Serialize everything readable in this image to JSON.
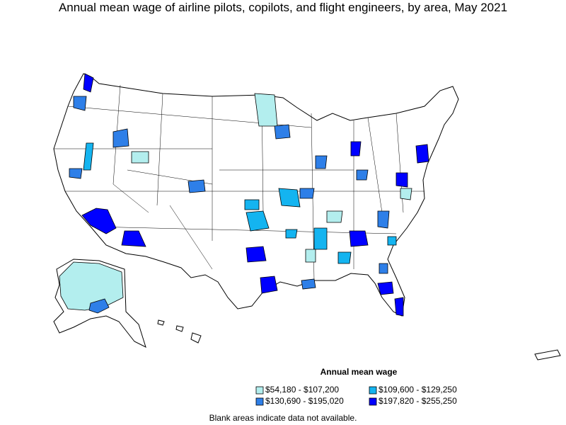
{
  "title": "Annual mean wage of airline pilots, copilots, and flight engineers, by area, May 2021",
  "legend": {
    "title": "Annual mean wage",
    "items": [
      {
        "label": "$54,180 - $107,200",
        "color": "#b3eeee"
      },
      {
        "label": "$109,600 - $129,250",
        "color": "#14b4f0"
      },
      {
        "label": "$130,690 - $195,020",
        "color": "#2e7fe8"
      },
      {
        "label": "$197,820 - $255,250",
        "color": "#0000ff"
      }
    ]
  },
  "note": "Blank areas indicate data not available."
}
